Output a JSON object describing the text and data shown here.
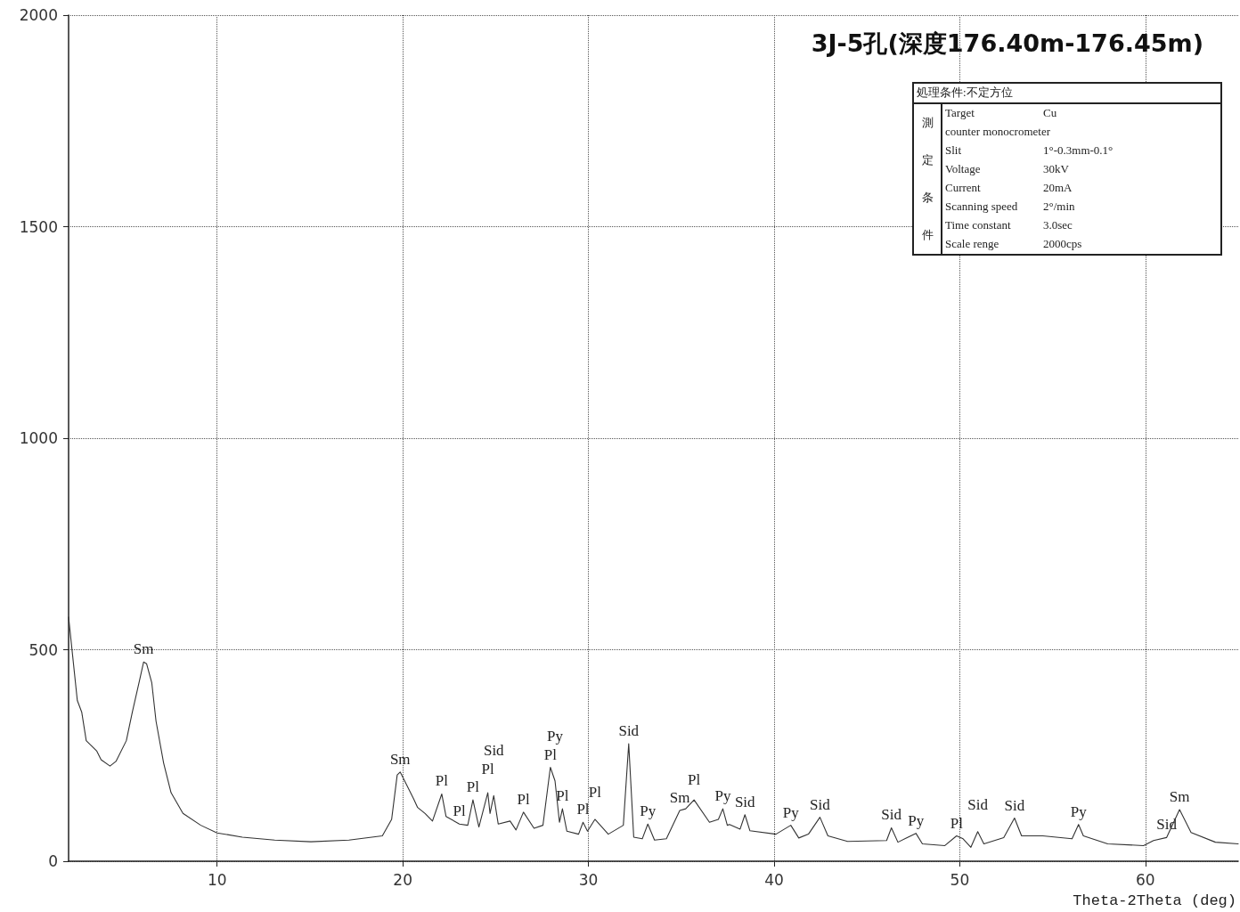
{
  "chart_data": {
    "type": "line",
    "title": "3J-5孔(深度176.40m-176.45m)",
    "xlabel": "Theta-2Theta (deg)",
    "xlim": [
      2,
      65
    ],
    "xticks": [
      10,
      20,
      30,
      40,
      50,
      60
    ],
    "ylim": [
      0,
      2000
    ],
    "yticks": [
      0,
      500,
      1000,
      1500,
      2000
    ],
    "grid": true,
    "marker": "none",
    "line_style": "solid",
    "series": [
      {
        "color": "#333333",
        "x": [
          2.0,
          2.47,
          2.71,
          2.95,
          3.51,
          3.75,
          4.23,
          4.55,
          5.11,
          5.43,
          5.83,
          6.04,
          6.2,
          6.48,
          6.71,
          7.12,
          7.52,
          8.16,
          9.12,
          10,
          11.36,
          13.1,
          15.05,
          17.1,
          18.9,
          19.4,
          19.7,
          19.86,
          20.1,
          20.58,
          20.8,
          21.2,
          21.6,
          22.1,
          22.33,
          23.05,
          23.5,
          23.78,
          24.1,
          24.58,
          24.7,
          24.9,
          25.14,
          25.78,
          26.1,
          26.5,
          27.07,
          27.55,
          27.95,
          28.2,
          28.44,
          28.6,
          28.84,
          29.47,
          29.71,
          29.95,
          30.35,
          31.07,
          31.88,
          32.17,
          32.44,
          32.9,
          33.2,
          33.56,
          34.2,
          34.92,
          35.24,
          35.69,
          36.52,
          37.0,
          37.24,
          37.48,
          37.6,
          38.17,
          38.43,
          38.7,
          40.1,
          40.9,
          41.33,
          41.85,
          42.47,
          42.9,
          43.96,
          46.06,
          46.32,
          46.67,
          47.64,
          47.99,
          49.2,
          49.83,
          50.18,
          50.6,
          50.97,
          51.3,
          52.37,
          52.95,
          53.33,
          54.47,
          56.05,
          56.4,
          56.66,
          57.97,
          59.9,
          60.44,
          61.14,
          61.84,
          62.46,
          63.77,
          65.0
        ],
        "values": [
          577,
          380,
          352,
          285,
          261,
          240,
          225,
          236,
          285,
          352,
          429,
          471,
          467,
          422,
          331,
          232,
          162,
          113,
          85,
          67,
          57,
          50,
          46,
          50,
          60,
          99,
          204,
          211,
          190,
          148,
          127,
          113,
          95,
          159,
          106,
          88,
          85,
          145,
          81,
          162,
          113,
          155,
          88,
          95,
          74,
          116,
          78,
          85,
          222,
          190,
          92,
          124,
          71,
          64,
          92,
          71,
          99,
          64,
          85,
          278,
          57,
          53,
          88,
          50,
          53,
          120,
          124,
          145,
          92,
          99,
          124,
          85,
          87,
          76,
          110,
          72,
          64,
          85,
          55,
          64,
          104,
          60,
          47,
          49,
          79,
          45,
          66,
          41,
          37,
          60,
          53,
          33,
          70,
          41,
          56,
          102,
          60,
          60,
          53,
          87,
          60,
          41,
          37,
          49,
          56,
          122,
          68,
          45,
          41
        ]
      }
    ],
    "annotations": [
      {
        "text": "Sm",
        "x": 6.04,
        "y": 471
      },
      {
        "text": "Sm",
        "x": 19.86,
        "y": 211
      },
      {
        "text": "Pl",
        "x": 22.1,
        "y": 159
      },
      {
        "text": "Pl",
        "x": 23.05,
        "y": 88
      },
      {
        "text": "Pl",
        "x": 23.78,
        "y": 145
      },
      {
        "text": "Pl",
        "x": 24.58,
        "y": 162
      },
      {
        "text": "Sid",
        "x": 24.9,
        "y": 155
      },
      {
        "text": "Pl",
        "x": 26.5,
        "y": 116
      },
      {
        "text": "Pl",
        "x": 27.95,
        "y": 222
      },
      {
        "text": "Py",
        "x": 28.2,
        "y": 190
      },
      {
        "text": "Pl",
        "x": 28.6,
        "y": 124
      },
      {
        "text": "Pl",
        "x": 29.71,
        "y": 92
      },
      {
        "text": "Pl",
        "x": 30.35,
        "y": 99
      },
      {
        "text": "Sid",
        "x": 32.17,
        "y": 278
      },
      {
        "text": "Py",
        "x": 33.2,
        "y": 88
      },
      {
        "text": "Sm",
        "x": 34.92,
        "y": 120
      },
      {
        "text": "Pl",
        "x": 35.69,
        "y": 145
      },
      {
        "text": "Py",
        "x": 37.24,
        "y": 124
      },
      {
        "text": "Sid",
        "x": 38.43,
        "y": 110
      },
      {
        "text": "Py",
        "x": 40.9,
        "y": 85
      },
      {
        "text": "Sid",
        "x": 42.47,
        "y": 104
      },
      {
        "text": "Sid",
        "x": 46.32,
        "y": 79
      },
      {
        "text": "Py",
        "x": 47.64,
        "y": 66
      },
      {
        "text": "Pl",
        "x": 49.83,
        "y": 60
      },
      {
        "text": "Sid",
        "x": 50.97,
        "y": 70
      },
      {
        "text": "Sid",
        "x": 52.95,
        "y": 102
      },
      {
        "text": "Py",
        "x": 56.4,
        "y": 87
      },
      {
        "text": "Sid",
        "x": 61.14,
        "y": 56
      },
      {
        "text": "Sm",
        "x": 61.84,
        "y": 122
      },
      "処理条件:不定方位",
      "測定条件",
      "Target",
      "Cu",
      "counter  monocrometer",
      "Slit",
      "1°-0.3mm-0.1°",
      "Voltage",
      "30kV",
      "Current",
      "20mA",
      "Scanning speed",
      "2°/min",
      "Time constant",
      "3.0sec",
      "Scale renge",
      "2000cps"
    ]
  }
}
